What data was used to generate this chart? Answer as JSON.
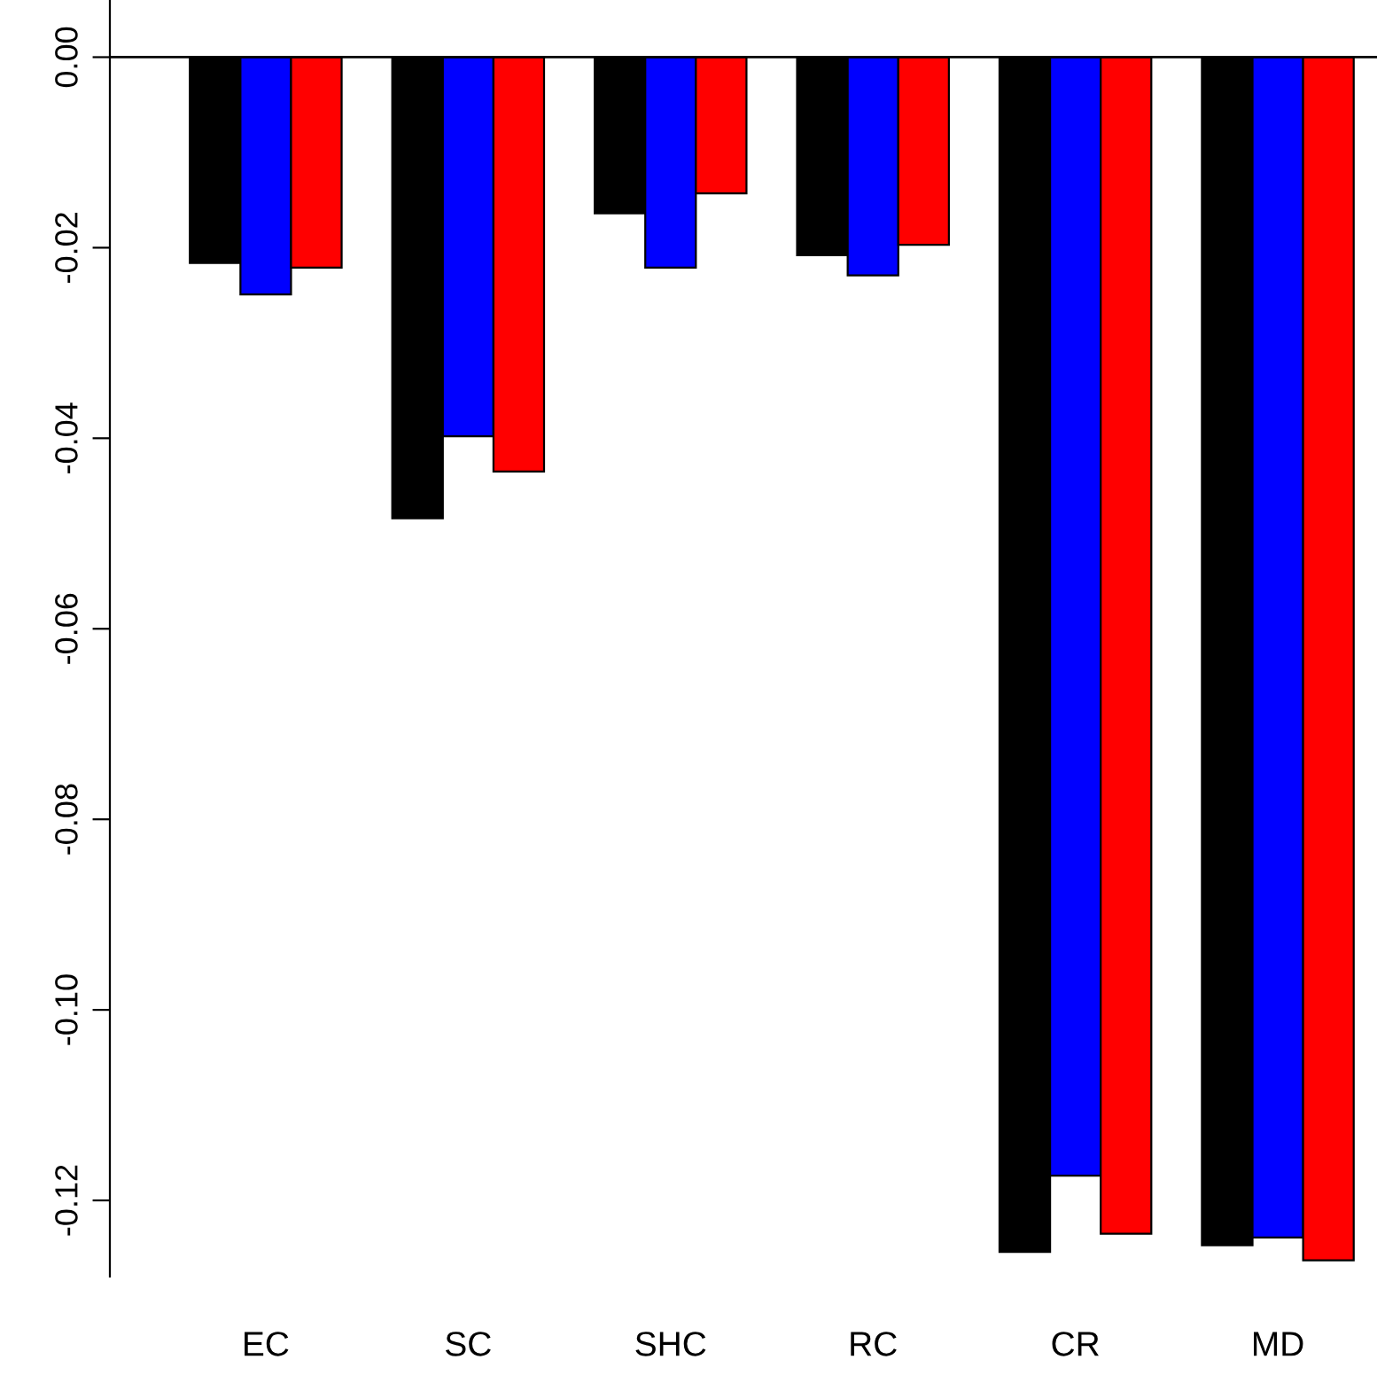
{
  "chart_data": {
    "type": "bar",
    "categories": [
      "EC",
      "SC",
      "SHC",
      "RC",
      "CR",
      "MD"
    ],
    "series": [
      {
        "color": "#000000",
        "values": [
          -0.0216,
          -0.0484,
          -0.0164,
          -0.0208,
          -0.1254,
          -0.1247
        ]
      },
      {
        "color": "#0000ff",
        "values": [
          -0.0249,
          -0.0398,
          -0.0221,
          -0.0229,
          -0.1174,
          -0.1239
        ]
      },
      {
        "color": "#ff0000",
        "values": [
          -0.0221,
          -0.0435,
          -0.0143,
          -0.0197,
          -0.1235,
          -0.1263
        ]
      }
    ],
    "ylim": [
      -0.128,
      0.006
    ],
    "yticks": [
      {
        "value": 0,
        "label": "0.00"
      },
      {
        "value": -0.02,
        "label": "-0.02"
      },
      {
        "value": -0.04,
        "label": "-0.04"
      },
      {
        "value": -0.06,
        "label": "-0.06"
      },
      {
        "value": -0.08,
        "label": "-0.08"
      },
      {
        "value": -0.1,
        "label": "-0.10"
      },
      {
        "value": -0.12,
        "label": "-0.12"
      }
    ],
    "ref_lines": [
      {
        "axis": "y",
        "value": 0,
        "color": "#000000"
      }
    ],
    "grid": false,
    "legend": false
  }
}
